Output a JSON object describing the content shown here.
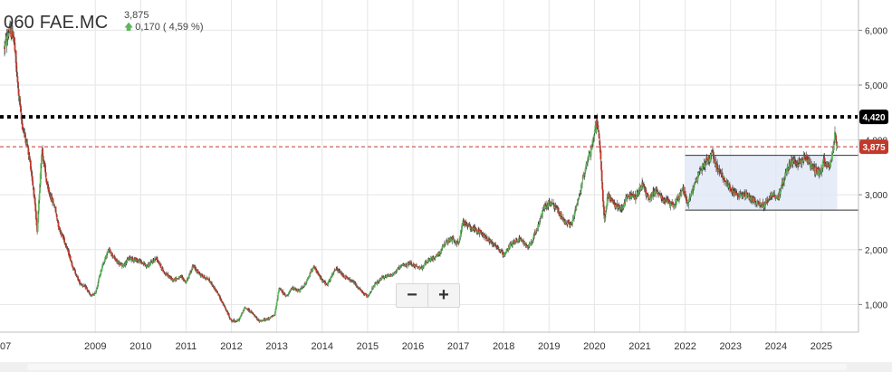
{
  "header": {
    "ticker": "060 FAE.MC",
    "last_price": "3,875",
    "change_text": "0,170 ( 4,59 %)",
    "change_icon": "arrow-up-icon"
  },
  "zoom": {
    "minus_label": "−",
    "plus_label": "+"
  },
  "colors": {
    "up": "#5cb85c",
    "down": "#c0392b",
    "resistance": "#000000",
    "last_price": "#c0392b",
    "range_fill": "#dde7f7"
  },
  "chart_data": {
    "type": "candlestick",
    "title": "060 FAE.MC",
    "x_axis": {
      "labels": [
        "07",
        "2009",
        "2010",
        "2011",
        "2012",
        "2013",
        "2014",
        "2015",
        "2016",
        "2017",
        "2018",
        "2019",
        "2020",
        "2021",
        "2022",
        "2023",
        "2024",
        "2025"
      ],
      "range": [
        2007.0,
        2025.5
      ]
    },
    "y_axis": {
      "ticks": [
        1000,
        2000,
        3000,
        4000,
        5000,
        6000
      ],
      "tick_labels": [
        "1,000",
        "2,000",
        "3,000",
        "4,000",
        "5,000",
        "6,000"
      ],
      "range": [
        500,
        6500
      ],
      "side": "right"
    },
    "series_path": [
      [
        2007.0,
        5700
      ],
      [
        2007.1,
        6000
      ],
      [
        2007.2,
        5900
      ],
      [
        2007.28,
        5100
      ],
      [
        2007.38,
        4300
      ],
      [
        2007.5,
        3900
      ],
      [
        2007.58,
        3500
      ],
      [
        2007.65,
        3000
      ],
      [
        2007.72,
        2300
      ],
      [
        2007.82,
        3850
      ],
      [
        2007.95,
        3100
      ],
      [
        2008.1,
        2800
      ],
      [
        2008.2,
        2400
      ],
      [
        2008.35,
        2100
      ],
      [
        2008.5,
        1700
      ],
      [
        2008.65,
        1400
      ],
      [
        2008.8,
        1300
      ],
      [
        2008.9,
        1150
      ],
      [
        2009.0,
        1200
      ],
      [
        2009.15,
        1700
      ],
      [
        2009.3,
        2000
      ],
      [
        2009.45,
        1800
      ],
      [
        2009.6,
        1700
      ],
      [
        2009.75,
        1850
      ],
      [
        2009.95,
        1800
      ],
      [
        2010.15,
        1700
      ],
      [
        2010.35,
        1850
      ],
      [
        2010.5,
        1600
      ],
      [
        2010.7,
        1450
      ],
      [
        2010.9,
        1500
      ],
      [
        2011.0,
        1400
      ],
      [
        2011.15,
        1700
      ],
      [
        2011.3,
        1550
      ],
      [
        2011.5,
        1450
      ],
      [
        2011.7,
        1200
      ],
      [
        2011.85,
        950
      ],
      [
        2012.0,
        700
      ],
      [
        2012.15,
        700
      ],
      [
        2012.3,
        950
      ],
      [
        2012.45,
        850
      ],
      [
        2012.6,
        700
      ],
      [
        2012.75,
        720
      ],
      [
        2012.95,
        800
      ],
      [
        2013.05,
        1300
      ],
      [
        2013.2,
        1150
      ],
      [
        2013.35,
        1300
      ],
      [
        2013.5,
        1250
      ],
      [
        2013.65,
        1400
      ],
      [
        2013.8,
        1700
      ],
      [
        2013.95,
        1500
      ],
      [
        2014.1,
        1350
      ],
      [
        2014.3,
        1650
      ],
      [
        2014.5,
        1500
      ],
      [
        2014.7,
        1400
      ],
      [
        2014.9,
        1200
      ],
      [
        2015.0,
        1150
      ],
      [
        2015.15,
        1350
      ],
      [
        2015.35,
        1500
      ],
      [
        2015.55,
        1550
      ],
      [
        2015.75,
        1700
      ],
      [
        2015.95,
        1750
      ],
      [
        2016.15,
        1650
      ],
      [
        2016.35,
        1800
      ],
      [
        2016.55,
        1900
      ],
      [
        2016.7,
        2100
      ],
      [
        2016.85,
        2200
      ],
      [
        2017.0,
        2100
      ],
      [
        2017.1,
        2500
      ],
      [
        2017.3,
        2400
      ],
      [
        2017.5,
        2300
      ],
      [
        2017.65,
        2200
      ],
      [
        2017.85,
        2050
      ],
      [
        2018.0,
        1900
      ],
      [
        2018.15,
        2100
      ],
      [
        2018.35,
        2200
      ],
      [
        2018.55,
        2050
      ],
      [
        2018.75,
        2400
      ],
      [
        2018.9,
        2800
      ],
      [
        2019.05,
        2850
      ],
      [
        2019.2,
        2700
      ],
      [
        2019.35,
        2500
      ],
      [
        2019.5,
        2450
      ],
      [
        2019.62,
        2850
      ],
      [
        2019.75,
        3300
      ],
      [
        2019.85,
        3650
      ],
      [
        2019.95,
        3900
      ],
      [
        2020.0,
        4150
      ],
      [
        2020.05,
        4300
      ],
      [
        2020.12,
        3950
      ],
      [
        2020.18,
        3000
      ],
      [
        2020.22,
        2550
      ],
      [
        2020.3,
        3000
      ],
      [
        2020.45,
        2800
      ],
      [
        2020.6,
        2750
      ],
      [
        2020.75,
        3000
      ],
      [
        2020.9,
        2950
      ],
      [
        2021.05,
        3200
      ],
      [
        2021.2,
        2900
      ],
      [
        2021.35,
        3100
      ],
      [
        2021.55,
        2900
      ],
      [
        2021.75,
        2800
      ],
      [
        2021.95,
        3100
      ],
      [
        2022.05,
        2850
      ],
      [
        2022.15,
        3050
      ],
      [
        2022.3,
        3400
      ],
      [
        2022.45,
        3600
      ],
      [
        2022.6,
        3750
      ],
      [
        2022.72,
        3450
      ],
      [
        2022.85,
        3300
      ],
      [
        2023.0,
        3100
      ],
      [
        2023.15,
        3000
      ],
      [
        2023.3,
        3000
      ],
      [
        2023.45,
        2950
      ],
      [
        2023.6,
        2850
      ],
      [
        2023.75,
        2800
      ],
      [
        2023.9,
        3000
      ],
      [
        2024.05,
        2950
      ],
      [
        2024.2,
        3350
      ],
      [
        2024.35,
        3650
      ],
      [
        2024.5,
        3550
      ],
      [
        2024.65,
        3700
      ],
      [
        2024.8,
        3500
      ],
      [
        2024.95,
        3400
      ],
      [
        2025.05,
        3600
      ],
      [
        2025.15,
        3500
      ],
      [
        2025.22,
        3600
      ],
      [
        2025.3,
        4100
      ],
      [
        2025.35,
        3875
      ]
    ],
    "annotations": {
      "resistance_line": {
        "value": 4420,
        "label": "4,420",
        "style": "dotted"
      },
      "last_price_line": {
        "value": 3875,
        "label": "3,875",
        "style": "dashed"
      },
      "range_box": {
        "x_start": 2022.0,
        "x_end": 2025.35,
        "y_low": 2720,
        "y_high": 3720
      }
    }
  }
}
